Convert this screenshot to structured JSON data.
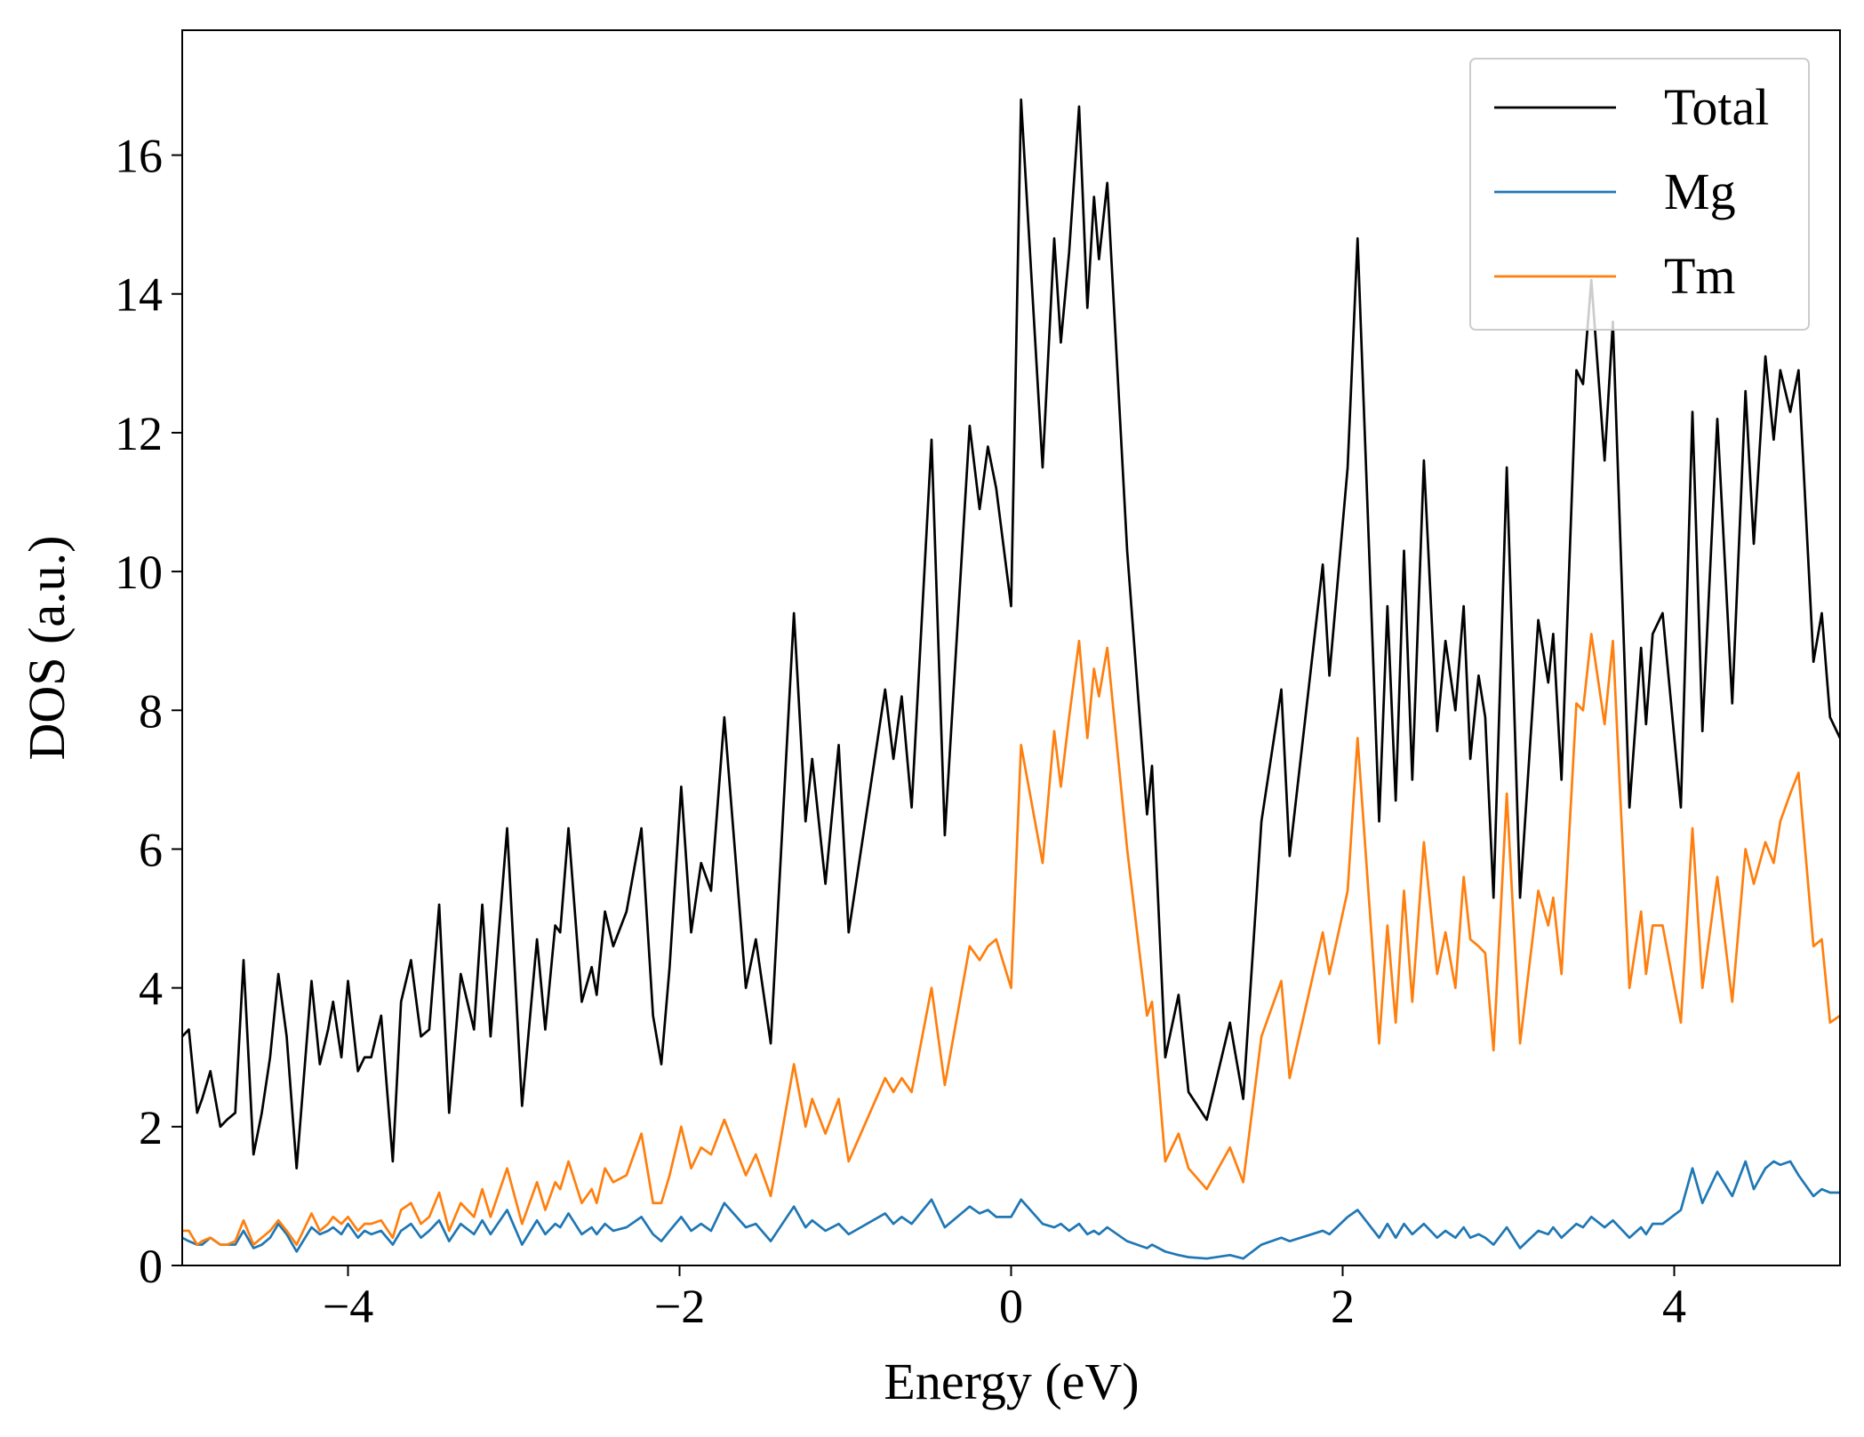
{
  "chart_data": {
    "type": "line",
    "xlabel": "Energy (eV)",
    "ylabel": "DOS (a.u.)",
    "xlim": [
      -5,
      5
    ],
    "ylim": [
      0,
      17.8
    ],
    "xticks": [
      {
        "value": -4,
        "label": "−4"
      },
      {
        "value": -2,
        "label": "−2"
      },
      0,
      2,
      4
    ],
    "yticks": [
      0,
      2,
      4,
      6,
      8,
      10,
      12,
      14,
      16
    ],
    "legend": "upper right",
    "x": [
      -5.0,
      -4.96,
      -4.91,
      -4.88,
      -4.83,
      -4.77,
      -4.73,
      -4.68,
      -4.63,
      -4.57,
      -4.52,
      -4.47,
      -4.42,
      -4.37,
      -4.31,
      -4.22,
      -4.17,
      -4.12,
      -4.09,
      -4.04,
      -4.0,
      -3.94,
      -3.9,
      -3.86,
      -3.8,
      -3.73,
      -3.68,
      -3.62,
      -3.56,
      -3.51,
      -3.45,
      -3.39,
      -3.32,
      -3.24,
      -3.19,
      -3.14,
      -3.04,
      -2.95,
      -2.86,
      -2.81,
      -2.75,
      -2.72,
      -2.67,
      -2.59,
      -2.53,
      -2.5,
      -2.45,
      -2.4,
      -2.32,
      -2.23,
      -2.16,
      -2.11,
      -2.06,
      -1.99,
      -1.93,
      -1.87,
      -1.81,
      -1.73,
      -1.6,
      -1.54,
      -1.45,
      -1.31,
      -1.24,
      -1.2,
      -1.12,
      -1.04,
      -0.98,
      -0.76,
      -0.71,
      -0.66,
      -0.6,
      -0.48,
      -0.4,
      -0.25,
      -0.19,
      -0.14,
      -0.09,
      0.0,
      0.06,
      0.19,
      0.26,
      0.3,
      0.35,
      0.41,
      0.46,
      0.5,
      0.53,
      0.58,
      0.7,
      0.82,
      0.85,
      0.93,
      1.01,
      1.07,
      1.18,
      1.32,
      1.4,
      1.51,
      1.63,
      1.68,
      1.88,
      1.92,
      2.03,
      2.09,
      2.22,
      2.27,
      2.32,
      2.37,
      2.42,
      2.49,
      2.57,
      2.62,
      2.68,
      2.73,
      2.77,
      2.82,
      2.86,
      2.91,
      2.99,
      3.07,
      3.18,
      3.24,
      3.27,
      3.32,
      3.41,
      3.45,
      3.5,
      3.58,
      3.63,
      3.73,
      3.8,
      3.83,
      3.87,
      3.93,
      4.04,
      4.11,
      4.17,
      4.26,
      4.35,
      4.43,
      4.48,
      4.55,
      4.6,
      4.64,
      4.7,
      4.75,
      4.84,
      4.89,
      4.94,
      5.0
    ],
    "series": [
      {
        "name": "Total",
        "color": "#000000",
        "values": [
          3.3,
          3.4,
          2.2,
          2.4,
          2.8,
          2.0,
          2.1,
          2.2,
          4.4,
          1.6,
          2.2,
          3.0,
          4.2,
          3.3,
          1.4,
          4.1,
          2.9,
          3.4,
          3.8,
          3.0,
          4.1,
          2.8,
          3.0,
          3.0,
          3.6,
          1.5,
          3.8,
          4.4,
          3.3,
          3.4,
          5.2,
          2.2,
          4.2,
          3.4,
          5.2,
          3.3,
          6.3,
          2.3,
          4.7,
          3.4,
          4.9,
          4.8,
          6.3,
          3.8,
          4.3,
          3.9,
          5.1,
          4.6,
          5.1,
          6.3,
          3.6,
          2.9,
          4.3,
          6.9,
          4.8,
          5.8,
          5.4,
          7.9,
          4.0,
          4.7,
          3.2,
          9.4,
          6.4,
          7.3,
          5.5,
          7.5,
          4.8,
          8.3,
          7.3,
          8.2,
          6.6,
          11.9,
          6.2,
          12.1,
          10.9,
          11.8,
          11.2,
          9.5,
          16.8,
          11.5,
          14.8,
          13.3,
          14.6,
          16.7,
          13.8,
          15.4,
          14.5,
          15.6,
          10.3,
          6.5,
          7.2,
          3.0,
          3.9,
          2.5,
          2.1,
          3.5,
          2.4,
          6.4,
          8.3,
          5.9,
          10.1,
          8.5,
          11.5,
          14.8,
          6.4,
          9.5,
          6.7,
          10.3,
          7.0,
          11.6,
          7.7,
          9.0,
          8.0,
          9.5,
          7.3,
          8.5,
          7.9,
          5.3,
          11.5,
          5.3,
          9.3,
          8.4,
          9.1,
          7.0,
          12.9,
          12.7,
          14.2,
          11.6,
          13.6,
          6.6,
          8.9,
          7.8,
          9.1,
          9.4,
          6.6,
          12.3,
          7.7,
          12.2,
          8.1,
          12.6,
          10.4,
          13.1,
          11.9,
          12.9,
          12.3,
          12.9,
          8.7,
          9.4,
          7.9,
          7.6
        ]
      },
      {
        "name": "Mg",
        "color": "#1f77b4",
        "values": [
          0.4,
          0.35,
          0.3,
          0.3,
          0.4,
          0.3,
          0.3,
          0.3,
          0.5,
          0.25,
          0.3,
          0.4,
          0.6,
          0.45,
          0.2,
          0.55,
          0.45,
          0.5,
          0.55,
          0.45,
          0.6,
          0.4,
          0.5,
          0.45,
          0.5,
          0.3,
          0.5,
          0.6,
          0.4,
          0.5,
          0.65,
          0.35,
          0.6,
          0.45,
          0.65,
          0.45,
          0.8,
          0.3,
          0.65,
          0.45,
          0.6,
          0.55,
          0.75,
          0.45,
          0.55,
          0.45,
          0.6,
          0.5,
          0.55,
          0.7,
          0.45,
          0.35,
          0.5,
          0.7,
          0.5,
          0.6,
          0.5,
          0.9,
          0.55,
          0.6,
          0.35,
          0.85,
          0.55,
          0.65,
          0.5,
          0.6,
          0.45,
          0.75,
          0.6,
          0.7,
          0.6,
          0.95,
          0.55,
          0.85,
          0.75,
          0.8,
          0.7,
          0.7,
          0.95,
          0.6,
          0.55,
          0.6,
          0.5,
          0.6,
          0.45,
          0.5,
          0.45,
          0.55,
          0.35,
          0.25,
          0.3,
          0.2,
          0.15,
          0.12,
          0.1,
          0.15,
          0.1,
          0.3,
          0.4,
          0.35,
          0.5,
          0.45,
          0.7,
          0.8,
          0.4,
          0.6,
          0.4,
          0.6,
          0.45,
          0.6,
          0.4,
          0.5,
          0.4,
          0.55,
          0.4,
          0.45,
          0.4,
          0.3,
          0.55,
          0.25,
          0.5,
          0.45,
          0.55,
          0.4,
          0.6,
          0.55,
          0.7,
          0.55,
          0.65,
          0.4,
          0.55,
          0.45,
          0.6,
          0.6,
          0.8,
          1.4,
          0.9,
          1.35,
          1.0,
          1.5,
          1.1,
          1.4,
          1.5,
          1.45,
          1.5,
          1.3,
          1.0,
          1.1,
          1.05,
          1.05
        ]
      },
      {
        "name": "Tm",
        "color": "#ff7f0e",
        "values": [
          0.5,
          0.5,
          0.3,
          0.35,
          0.4,
          0.3,
          0.3,
          0.35,
          0.65,
          0.3,
          0.4,
          0.5,
          0.65,
          0.5,
          0.3,
          0.75,
          0.5,
          0.6,
          0.7,
          0.6,
          0.7,
          0.5,
          0.6,
          0.6,
          0.65,
          0.4,
          0.8,
          0.9,
          0.6,
          0.7,
          1.05,
          0.5,
          0.9,
          0.7,
          1.1,
          0.7,
          1.4,
          0.6,
          1.2,
          0.8,
          1.2,
          1.1,
          1.5,
          0.9,
          1.1,
          0.9,
          1.4,
          1.2,
          1.3,
          1.9,
          0.9,
          0.9,
          1.3,
          2.0,
          1.4,
          1.7,
          1.6,
          2.1,
          1.3,
          1.6,
          1.0,
          2.9,
          2.0,
          2.4,
          1.9,
          2.4,
          1.5,
          2.7,
          2.5,
          2.7,
          2.5,
          4.0,
          2.6,
          4.6,
          4.4,
          4.6,
          4.7,
          4.0,
          7.5,
          5.8,
          7.7,
          6.9,
          7.9,
          9.0,
          7.6,
          8.6,
          8.2,
          8.9,
          6.0,
          3.6,
          3.8,
          1.5,
          1.9,
          1.4,
          1.1,
          1.7,
          1.2,
          3.3,
          4.1,
          2.7,
          4.8,
          4.2,
          5.4,
          7.6,
          3.2,
          4.9,
          3.5,
          5.4,
          3.8,
          6.1,
          4.2,
          4.8,
          4.0,
          5.6,
          4.7,
          4.6,
          4.5,
          3.1,
          6.8,
          3.2,
          5.4,
          4.9,
          5.3,
          4.2,
          8.1,
          8.0,
          9.1,
          7.8,
          9.0,
          4.0,
          5.1,
          4.2,
          4.9,
          4.9,
          3.5,
          6.3,
          4.0,
          5.6,
          3.8,
          6.0,
          5.5,
          6.1,
          5.8,
          6.4,
          6.8,
          7.1,
          4.6,
          4.7,
          3.5,
          3.6
        ]
      }
    ]
  }
}
